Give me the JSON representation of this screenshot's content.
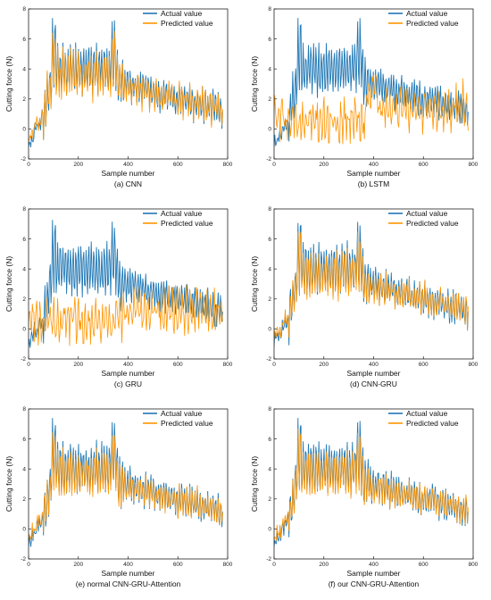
{
  "colors": {
    "actual": "#1f77b4",
    "predicted": "#ff9500"
  },
  "chart_data": [
    {
      "type": "line",
      "caption": "(a) CNN",
      "xlabel": "Sample number",
      "ylabel": "Cutting force (N)",
      "xlim": [
        0,
        800
      ],
      "ylim": [
        -2,
        8
      ],
      "xticks": [
        0,
        200,
        400,
        600,
        800
      ],
      "yticks": [
        -2,
        0,
        2,
        4,
        6,
        8
      ],
      "legend": "top-right",
      "legend_labels": [
        "Actual value",
        "Predicted value"
      ],
      "model": "cnn"
    },
    {
      "type": "line",
      "caption": "(b) LSTM",
      "xlabel": "Sample number",
      "ylabel": "Cutting force (N)",
      "xlim": [
        0,
        800
      ],
      "ylim": [
        -2,
        8
      ],
      "xticks": [
        0,
        200,
        400,
        600,
        800
      ],
      "yticks": [
        -2,
        0,
        2,
        4,
        6,
        8
      ],
      "legend": "top-right",
      "legend_labels": [
        "Actual value",
        "Predicted value"
      ],
      "model": "lstm"
    },
    {
      "type": "line",
      "caption": "(c) GRU",
      "xlabel": "Sample number",
      "ylabel": "Cutting force (N)",
      "xlim": [
        0,
        800
      ],
      "ylim": [
        -2,
        8
      ],
      "xticks": [
        0,
        200,
        400,
        600,
        800
      ],
      "yticks": [
        -2,
        0,
        2,
        4,
        6,
        8
      ],
      "legend": "top-right",
      "legend_labels": [
        "Actual value",
        "Predicted value"
      ],
      "model": "gru"
    },
    {
      "type": "line",
      "caption": "(d) CNN-GRU",
      "xlabel": "Sample number",
      "ylabel": "Cutting force (N)",
      "xlim": [
        0,
        800
      ],
      "ylim": [
        -2,
        8
      ],
      "xticks": [
        0,
        200,
        400,
        600,
        800
      ],
      "yticks": [
        -2,
        0,
        2,
        4,
        6,
        8
      ],
      "legend": "top-right",
      "legend_labels": [
        "Actual value",
        "Predicted value"
      ],
      "model": "cnngru"
    },
    {
      "type": "line",
      "caption": "(e) normal CNN-GRU-Attention",
      "xlabel": "Sample number",
      "ylabel": "Cutting force (N)",
      "xlim": [
        0,
        800
      ],
      "ylim": [
        -2,
        8
      ],
      "xticks": [
        0,
        200,
        400,
        600,
        800
      ],
      "yticks": [
        -2,
        0,
        2,
        4,
        6,
        8
      ],
      "legend": "top-right",
      "legend_labels": [
        "Actual value",
        "Predicted value"
      ],
      "model": "normalatt"
    },
    {
      "type": "line",
      "caption": "(f) our CNN-GRU-Attention",
      "xlabel": "Sample number",
      "ylabel": "Cutting force (N)",
      "xlim": [
        0,
        800
      ],
      "ylim": [
        -2,
        8
      ],
      "xticks": [
        0,
        200,
        400,
        600,
        800
      ],
      "yticks": [
        -2,
        0,
        2,
        4,
        6,
        8
      ],
      "legend": "top-right",
      "legend_labels": [
        "Actual value",
        "Predicted value"
      ],
      "model": "ouratt"
    }
  ]
}
